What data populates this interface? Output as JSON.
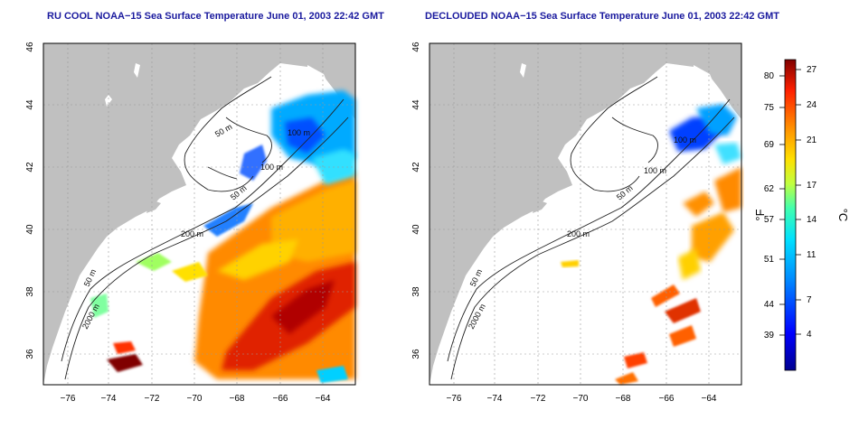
{
  "panels": [
    {
      "title": "RU COOL NOAA−15 Sea Surface Temperature June 01, 2003 22:42 GMT",
      "contour_labels": [
        "100 m",
        "50 m",
        "100 m",
        "50 m",
        "200 m",
        "50 m",
        "2000 m"
      ]
    },
    {
      "title": "DECLOUDED NOAA−15 Sea Surface Temperature June 01, 2003 22:42 GMT",
      "contour_labels": [
        "100 m",
        "100 m",
        "50 m",
        "200 m",
        "50 m",
        "2000 m"
      ]
    }
  ],
  "axes": {
    "lat_ticks": [
      "46",
      "44",
      "42",
      "40",
      "38",
      "36"
    ],
    "lon_ticks": [
      "−76",
      "−74",
      "−72",
      "−70",
      "−68",
      "−66",
      "−64"
    ]
  },
  "colorbar": {
    "f_label": "°F",
    "c_label": "°C",
    "f_ticks": [
      "80",
      "75",
      "69",
      "62",
      "57",
      "51",
      "44",
      "39"
    ],
    "c_ticks": [
      "27",
      "24",
      "21",
      "17",
      "14",
      "11",
      "7",
      "4"
    ]
  },
  "colors": {
    "land": "#c0c0c0",
    "title": "#1a1a9e"
  }
}
